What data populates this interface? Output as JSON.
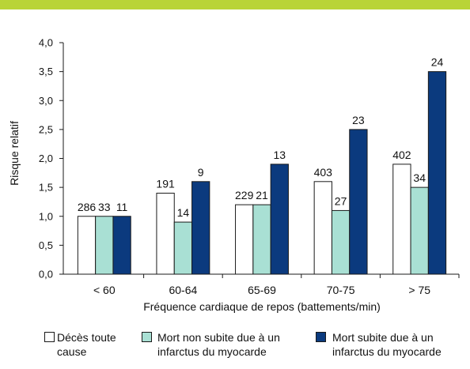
{
  "chart_data": {
    "type": "bar",
    "xlabel": "Fréquence cardiaque de repos (battements/min)",
    "ylabel": "Risque relatif",
    "ylim": [
      0,
      4
    ],
    "yticks": [
      "0,0",
      "0,5",
      "1,0",
      "1,5",
      "2,0",
      "2,5",
      "3,0",
      "3,5",
      "4,0"
    ],
    "categories": [
      "< 60",
      "60-64",
      "65-69",
      "70-75",
      "> 75"
    ],
    "series": [
      {
        "name": "Décès toute cause",
        "color": "#ffffff",
        "values": [
          1.0,
          1.4,
          1.2,
          1.6,
          1.9
        ],
        "data_labels": [
          "286",
          "191",
          "229",
          "403",
          "402"
        ]
      },
      {
        "name": "Mort non subite due à un infarctus du myocarde",
        "color": "#a9e0d4",
        "values": [
          1.0,
          0.9,
          1.2,
          1.1,
          1.5
        ],
        "data_labels": [
          "33",
          "14",
          "21",
          "27",
          "34"
        ]
      },
      {
        "name": "Mort subite due à un infarctus du myocarde",
        "color": "#0b3a7e",
        "values": [
          1.0,
          1.6,
          1.9,
          2.5,
          3.5
        ],
        "data_labels": [
          "11",
          "9",
          "13",
          "23",
          "24"
        ]
      }
    ],
    "grid": false,
    "legend": "bottom"
  },
  "colors": {
    "accent_band": "#b9d437",
    "axis": "#1a1a1a"
  }
}
